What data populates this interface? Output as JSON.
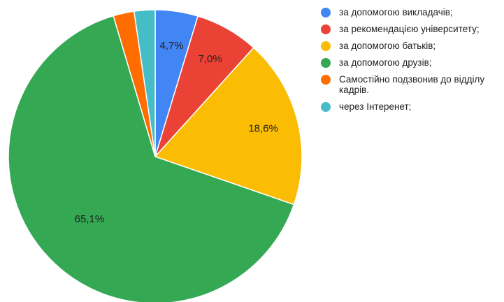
{
  "chart_data": {
    "type": "pie",
    "start_angle_deg": 0,
    "direction": "clockwise",
    "slices": [
      {
        "label": "за допомогою викладачів;",
        "value": 4.7,
        "color": "#4285f4",
        "display": "4,7%",
        "label_color": "#222222"
      },
      {
        "label": "за рекомендацією університету;",
        "value": 7.0,
        "color": "#ea4335",
        "display": "7,0%",
        "label_color": "#222222"
      },
      {
        "label": "за допомогою батьків;",
        "value": 18.6,
        "color": "#fbbc04",
        "display": "18,6%",
        "label_color": "#222222"
      },
      {
        "label": "за допомогою друзів;",
        "value": 65.1,
        "color": "#34a853",
        "display": "65,1%",
        "label_color": "#222222"
      },
      {
        "label": "Самостійно подзвонив до відділу кадрів.",
        "value": 2.3,
        "color": "#ff6d01",
        "display": "",
        "label_color": "#222222"
      },
      {
        "label": "через Інтеренет;",
        "value": 2.3,
        "color": "#46bdc6",
        "display": "",
        "label_color": "#222222"
      }
    ],
    "legend_position": "right"
  }
}
